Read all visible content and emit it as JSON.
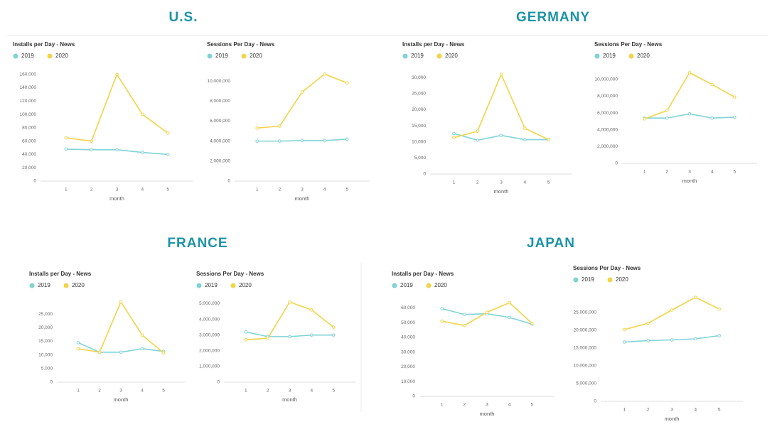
{
  "sections": [
    {
      "title": "U.S."
    },
    {
      "title": "GERMANY"
    },
    {
      "title": "FRANCE"
    },
    {
      "title": "JAPAN"
    }
  ],
  "chart_data": [
    {
      "type": "line",
      "title": "Installs per Day - News",
      "x_label": "month",
      "x": [
        1,
        2,
        3,
        4,
        5
      ],
      "xlim": [
        0,
        6
      ],
      "xticks": [
        1,
        2,
        3,
        4,
        5
      ],
      "ylim": [
        0,
        165000
      ],
      "yticks": [
        0,
        {
          "value": 20000,
          "label": "20,000"
        },
        {
          "value": 40000,
          "label": "40,000"
        },
        {
          "value": 60000,
          "label": "60,000"
        },
        {
          "value": 80000,
          "label": "80,000"
        },
        {
          "value": 100000,
          "label": "100,000"
        },
        {
          "value": 120000,
          "label": "120,000"
        },
        {
          "value": 140000,
          "label": "140,000"
        },
        {
          "value": 160000,
          "label": "160,000"
        }
      ],
      "grid": false,
      "series": [
        {
          "name": "2019",
          "color": "#7fd3d6",
          "values": [
            48000,
            47000,
            47000,
            43000,
            40000
          ]
        },
        {
          "name": "2020",
          "color": "#f2d447",
          "values": [
            65000,
            60000,
            160000,
            100000,
            72000
          ]
        }
      ]
    },
    {
      "type": "line",
      "title": "Sessions Per Day - News",
      "x_label": "month",
      "x": [
        1,
        2,
        3,
        4,
        5
      ],
      "xlim": [
        0,
        6
      ],
      "xticks": [
        1,
        2,
        3,
        4,
        5
      ],
      "ylim": [
        0,
        11000000
      ],
      "yticks": [
        0,
        {
          "value": 2000000,
          "label": "2,000,000"
        },
        {
          "value": 4000000,
          "label": "4,000,000"
        },
        {
          "value": 6000000,
          "label": "6,000,000"
        },
        {
          "value": 8000000,
          "label": "8,000,000"
        },
        {
          "value": 10000000,
          "label": "10,000,000"
        }
      ],
      "grid": false,
      "series": [
        {
          "name": "2019",
          "color": "#7fd3d6",
          "values": [
            4000000,
            4000000,
            4050000,
            4050000,
            4200000
          ]
        },
        {
          "name": "2020",
          "color": "#f2d447",
          "values": [
            5300000,
            5500000,
            8900000,
            10700000,
            9800000
          ]
        }
      ]
    },
    {
      "type": "line",
      "title": "Installs per Day - News",
      "x_label": "month",
      "x": [
        1,
        2,
        3,
        4,
        5
      ],
      "xlim": [
        0,
        6
      ],
      "xticks": [
        1,
        2,
        3,
        4,
        5
      ],
      "ylim": [
        0,
        32000
      ],
      "yticks": [
        0,
        {
          "value": 5000,
          "label": "5,000"
        },
        {
          "value": 10000,
          "label": "10,000"
        },
        {
          "value": 15000,
          "label": "15,000"
        },
        {
          "value": 20000,
          "label": "20,000"
        },
        {
          "value": 25000,
          "label": "25,000"
        },
        {
          "value": 30000,
          "label": "30,000"
        }
      ],
      "grid": false,
      "series": [
        {
          "name": "2019",
          "color": "#7fd3d6",
          "values": [
            12600,
            10500,
            12000,
            10700,
            10700
          ]
        },
        {
          "name": "2020",
          "color": "#f2d447",
          "values": [
            11300,
            13300,
            31000,
            14200,
            10700
          ]
        }
      ]
    },
    {
      "type": "line",
      "title": "Sessions Per Day - News",
      "x_label": "month",
      "x": [
        1,
        2,
        3,
        4,
        5
      ],
      "xlim": [
        0,
        6
      ],
      "xticks": [
        1,
        2,
        3,
        4,
        5
      ],
      "ylim": [
        0,
        11000000
      ],
      "yticks": [
        0,
        {
          "value": 2000000,
          "label": "2,000,000"
        },
        {
          "value": 4000000,
          "label": "4,000,000"
        },
        {
          "value": 6000000,
          "label": "6,000,000"
        },
        {
          "value": 8000000,
          "label": "8,000,000"
        },
        {
          "value": 10000000,
          "label": "10,000,000"
        }
      ],
      "grid": false,
      "series": [
        {
          "name": "2019",
          "color": "#7fd3d6",
          "values": [
            5400000,
            5400000,
            5900000,
            5400000,
            5500000
          ]
        },
        {
          "name": "2020",
          "color": "#f2d447",
          "values": [
            5300000,
            6300000,
            10800000,
            9400000,
            7900000
          ]
        }
      ]
    },
    {
      "type": "line",
      "title": "Installs per Day - News",
      "x_label": "month",
      "x": [
        1,
        2,
        3,
        4,
        5
      ],
      "xlim": [
        0,
        6
      ],
      "xticks": [
        1,
        2,
        3,
        4,
        5
      ],
      "ylim": [
        0,
        30000
      ],
      "yticks": [
        0,
        {
          "value": 5000,
          "label": "5,000"
        },
        {
          "value": 10000,
          "label": "10,000"
        },
        {
          "value": 15000,
          "label": "15,000"
        },
        {
          "value": 20000,
          "label": "20,000"
        },
        {
          "value": 25000,
          "label": "25,000"
        }
      ],
      "grid": false,
      "series": [
        {
          "name": "2019",
          "color": "#7fd3d6",
          "values": [
            14500,
            11000,
            11000,
            12300,
            11300
          ]
        },
        {
          "name": "2020",
          "color": "#f2d447",
          "values": [
            12300,
            11000,
            29500,
            17300,
            10800
          ]
        }
      ]
    },
    {
      "type": "line",
      "title": "Sessions Per Day - News",
      "x_label": "month",
      "x": [
        1,
        2,
        3,
        4,
        5
      ],
      "xlim": [
        0,
        6
      ],
      "xticks": [
        1,
        2,
        3,
        4,
        5
      ],
      "ylim": [
        0,
        5200000
      ],
      "yticks": [
        0,
        {
          "value": 1000000,
          "label": "1,000,000"
        },
        {
          "value": 2000000,
          "label": "2,000,000"
        },
        {
          "value": 3000000,
          "label": "3,000,000"
        },
        {
          "value": 4000000,
          "label": "4,000,000"
        },
        {
          "value": 5000000,
          "label": "5,000,000"
        }
      ],
      "grid": false,
      "series": [
        {
          "name": "2019",
          "color": "#7fd3d6",
          "values": [
            3200000,
            2900000,
            2900000,
            3000000,
            3000000
          ]
        },
        {
          "name": "2020",
          "color": "#f2d447",
          "values": [
            2700000,
            2800000,
            5100000,
            4600000,
            3500000
          ]
        }
      ]
    },
    {
      "type": "line",
      "title": "Installs per Day - News",
      "x_label": "month",
      "x": [
        1,
        2,
        3,
        4,
        5
      ],
      "xlim": [
        0,
        6
      ],
      "xticks": [
        1,
        2,
        3,
        4,
        5
      ],
      "ylim": [
        0,
        65000
      ],
      "yticks": [
        0,
        {
          "value": 10000,
          "label": "10,000"
        },
        {
          "value": 20000,
          "label": "20,000"
        },
        {
          "value": 30000,
          "label": "30,000"
        },
        {
          "value": 40000,
          "label": "40,000"
        },
        {
          "value": 50000,
          "label": "50,000"
        },
        {
          "value": 60000,
          "label": "60,000"
        }
      ],
      "grid": false,
      "series": [
        {
          "name": "2019",
          "color": "#7fd3d6",
          "values": [
            59500,
            55500,
            56000,
            53500,
            49000
          ]
        },
        {
          "name": "2020",
          "color": "#f2d447",
          "values": [
            51000,
            48000,
            57000,
            63500,
            49500
          ]
        }
      ]
    },
    {
      "type": "line",
      "title": "Sessions Per Day - News",
      "x_label": "month",
      "x": [
        1,
        2,
        3,
        4,
        5
      ],
      "xlim": [
        0,
        6
      ],
      "xticks": [
        1,
        2,
        3,
        4,
        5
      ],
      "ylim": [
        0,
        30000000
      ],
      "yticks": [
        0,
        {
          "value": 5000000,
          "label": "5,000,000"
        },
        {
          "value": 10000000,
          "label": "10,000,000"
        },
        {
          "value": 15000000,
          "label": "15,000,000"
        },
        {
          "value": 20000000,
          "label": "20,000,000"
        },
        {
          "value": 25000000,
          "label": "25,000,000"
        }
      ],
      "grid": false,
      "series": [
        {
          "name": "2019",
          "color": "#7fd3d6",
          "values": [
            16700000,
            17100000,
            17300000,
            17600000,
            18500000
          ]
        },
        {
          "name": "2020",
          "color": "#f2d447",
          "values": [
            20200000,
            22000000,
            25700000,
            29300000,
            26000000
          ]
        }
      ]
    }
  ]
}
